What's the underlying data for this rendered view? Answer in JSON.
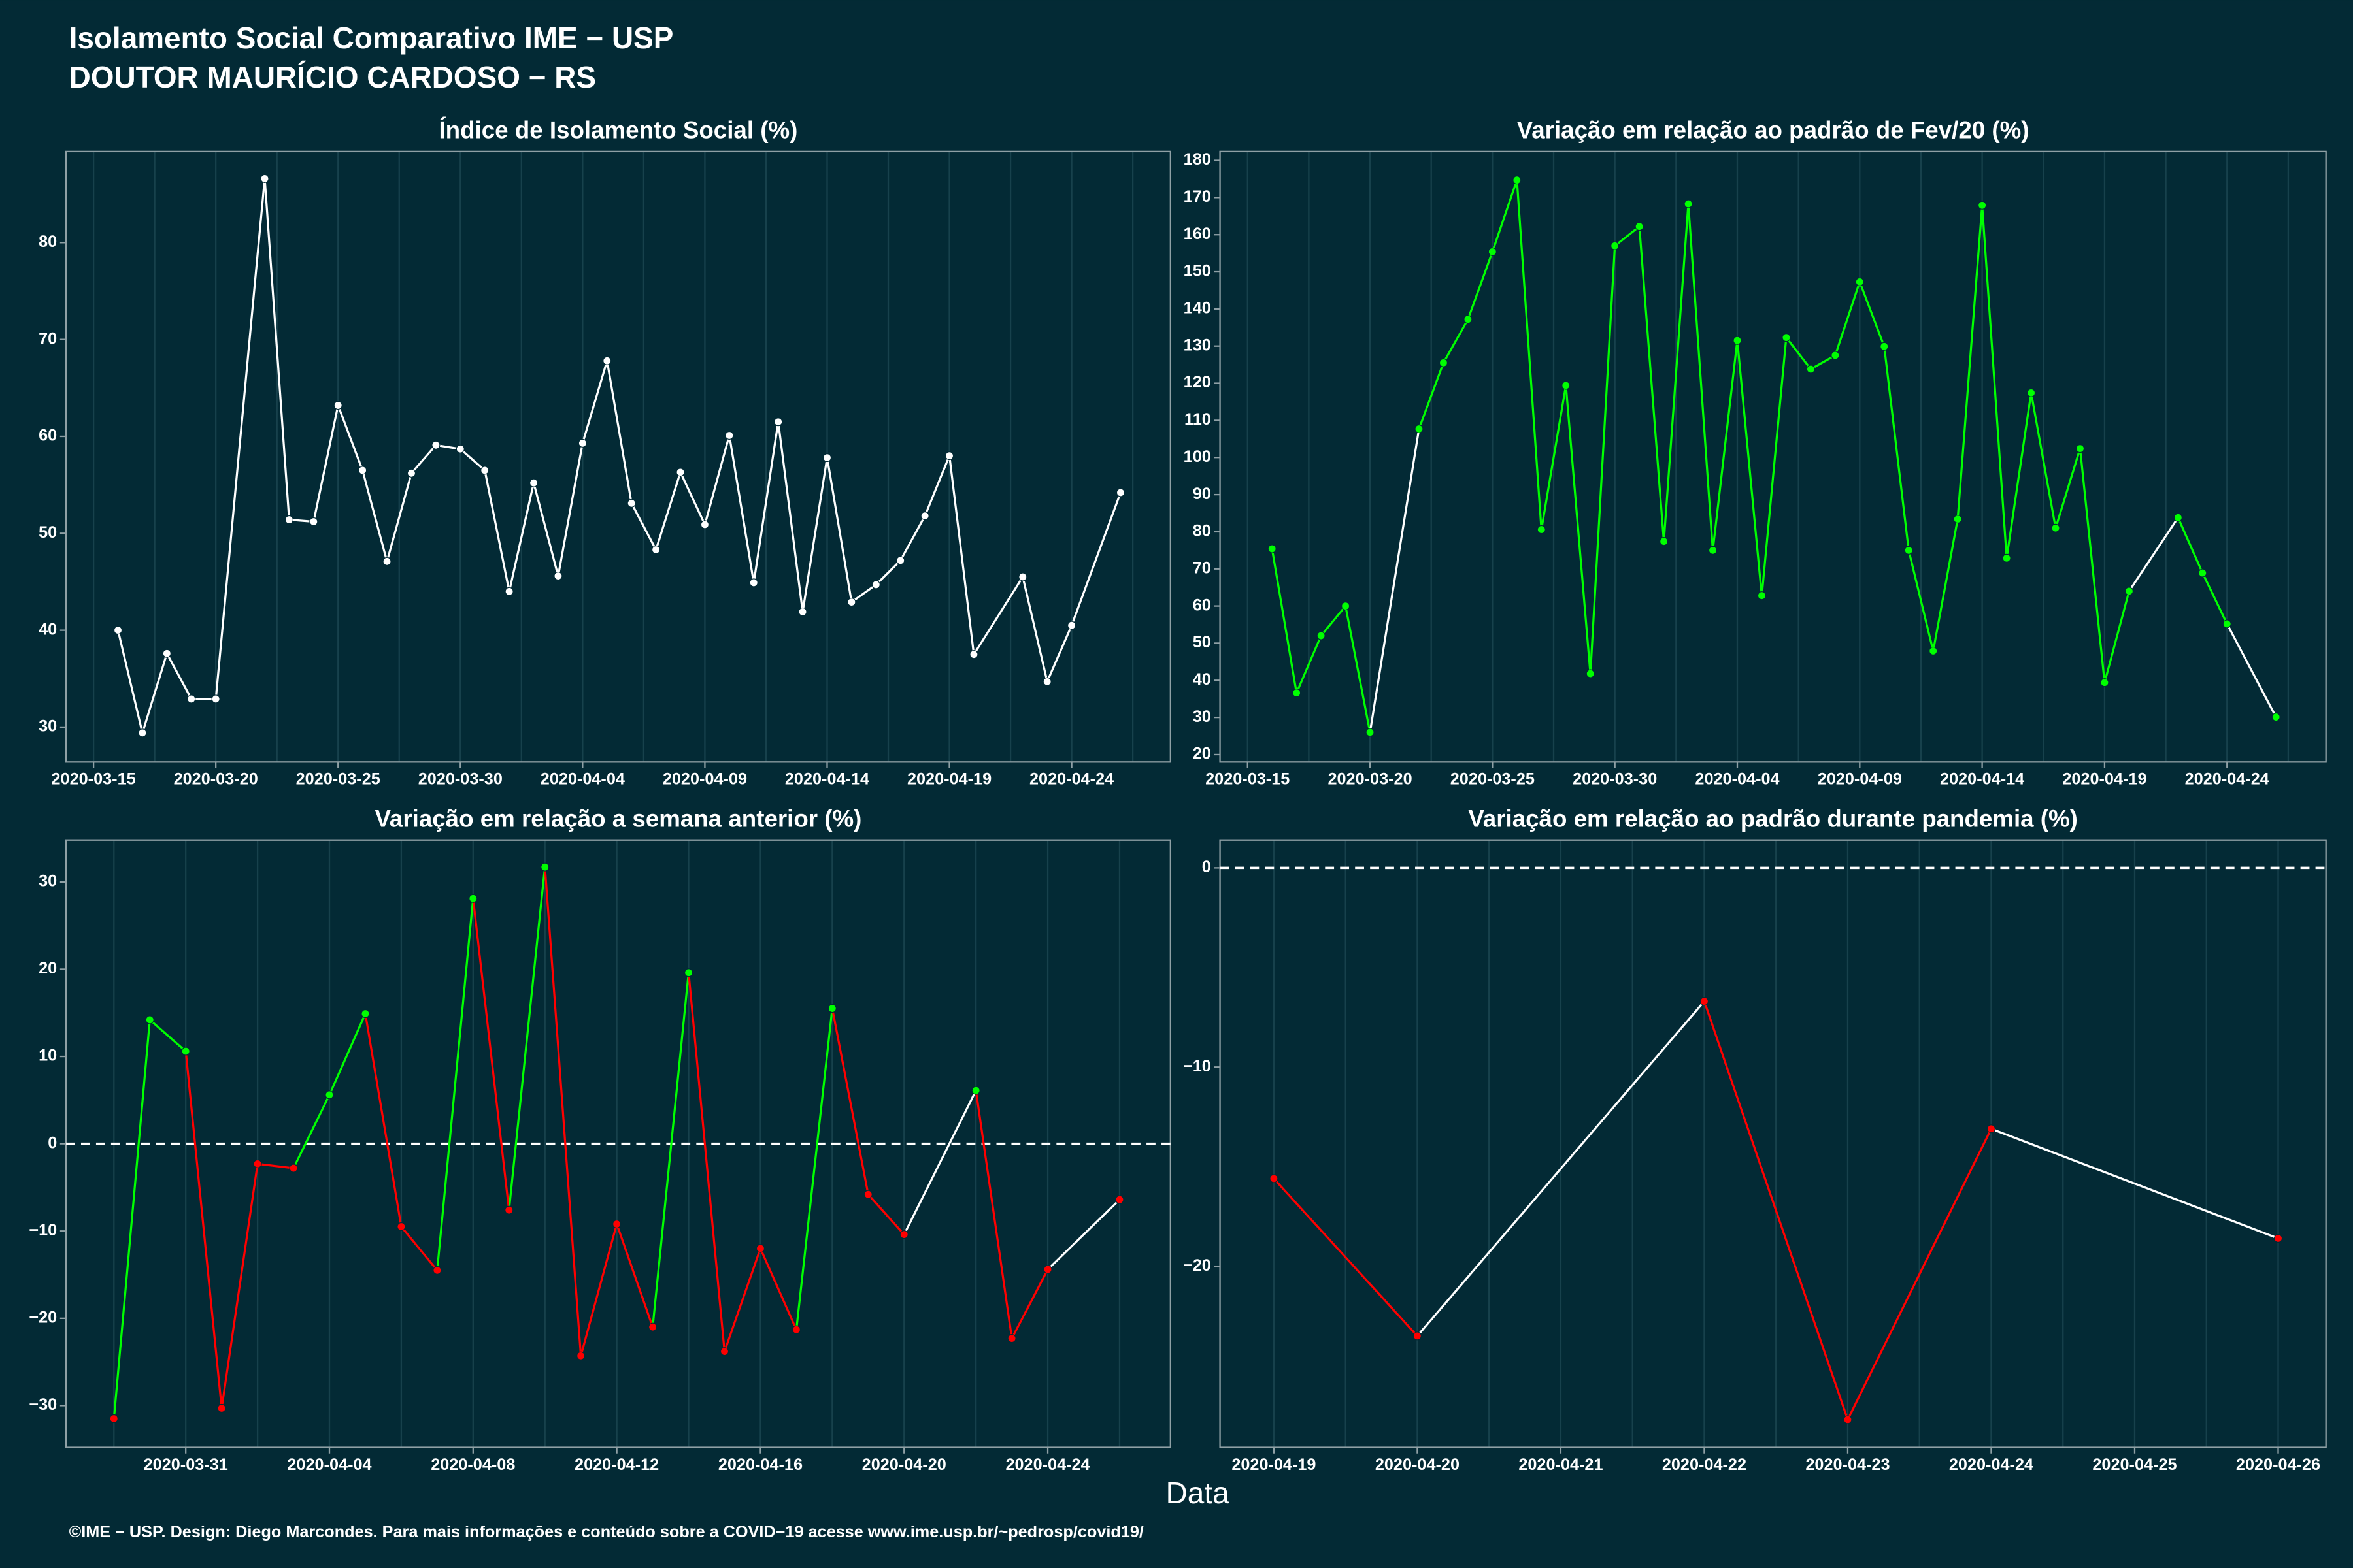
{
  "title": [
    "Isolamento Social Comparativo IME − USP",
    "DOUTOR MAURÍCIO CARDOSO − RS"
  ],
  "xlabel": "Data",
  "caption": "©IME − USP. Design: Diego Marcondes. Para mais informações e conteúdo sobre a COVID−19 acesse www.ime.usp.br/~pedrosp/covid19/",
  "chart_data": [
    {
      "type": "line",
      "title": "Índice de Isolamento Social (%)",
      "color": "#ffffff",
      "grid": true,
      "x": [
        "2020-03-16",
        "2020-03-17",
        "2020-03-18",
        "2020-03-19",
        "2020-03-20",
        "2020-03-22",
        "2020-03-23",
        "2020-03-24",
        "2020-03-25",
        "2020-03-26",
        "2020-03-27",
        "2020-03-28",
        "2020-03-29",
        "2020-03-30",
        "2020-03-31",
        "2020-04-01",
        "2020-04-02",
        "2020-04-03",
        "2020-04-04",
        "2020-04-05",
        "2020-04-06",
        "2020-04-07",
        "2020-04-08",
        "2020-04-09",
        "2020-04-10",
        "2020-04-11",
        "2020-04-12",
        "2020-04-13",
        "2020-04-14",
        "2020-04-15",
        "2020-04-16",
        "2020-04-17",
        "2020-04-18",
        "2020-04-19",
        "2020-04-20",
        "2020-04-22",
        "2020-04-23",
        "2020-04-24",
        "2020-04-26"
      ],
      "values": [
        40,
        29.4,
        37.6,
        32.9,
        32.9,
        86.6,
        51.4,
        51.2,
        63.2,
        56.5,
        47.1,
        56.2,
        59.1,
        58.7,
        56.5,
        44,
        55.2,
        45.6,
        59.3,
        67.8,
        53.1,
        48.3,
        56.3,
        50.9,
        60.1,
        44.9,
        61.5,
        41.9,
        57.8,
        42.9,
        44.7,
        47.2,
        51.8,
        58,
        37.5,
        45.5,
        34.7,
        40.5,
        54.2
      ],
      "xlim": [
        "2020-03-13T21:00",
        "2020-04-28T01:00"
      ],
      "ylim": [
        26.4,
        89.4
      ],
      "xticks": [
        "2020-03-15",
        "2020-03-20",
        "2020-03-25",
        "2020-03-30",
        "2020-04-04",
        "2020-04-09",
        "2020-04-14",
        "2020-04-19",
        "2020-04-24"
      ],
      "yticks": [
        30,
        40,
        50,
        60,
        70,
        80
      ]
    },
    {
      "type": "line",
      "title": "Variação em relação ao padrão de Fev/20 (%)",
      "positive_color": "#00ff00",
      "negative_color": "#ff0000",
      "gap_color": "#ffffff",
      "grid": true,
      "x": [
        "2020-03-16",
        "2020-03-17",
        "2020-03-18",
        "2020-03-19",
        "2020-03-20",
        "2020-03-22",
        "2020-03-23",
        "2020-03-24",
        "2020-03-25",
        "2020-03-26",
        "2020-03-27",
        "2020-03-28",
        "2020-03-29",
        "2020-03-30",
        "2020-03-31",
        "2020-04-01",
        "2020-04-02",
        "2020-04-03",
        "2020-04-04",
        "2020-04-05",
        "2020-04-06",
        "2020-04-07",
        "2020-04-08",
        "2020-04-09",
        "2020-04-10",
        "2020-04-11",
        "2020-04-12",
        "2020-04-13",
        "2020-04-14",
        "2020-04-15",
        "2020-04-16",
        "2020-04-17",
        "2020-04-18",
        "2020-04-19",
        "2020-04-20",
        "2020-04-22",
        "2020-04-23",
        "2020-04-24",
        "2020-04-26"
      ],
      "values": [
        75.4,
        36.6,
        52,
        60,
        26,
        107.7,
        125.5,
        137.2,
        155.4,
        174.7,
        80.6,
        119.4,
        41.8,
        157,
        162.2,
        77.4,
        168.3,
        75,
        131.5,
        62.8,
        132.3,
        123.8,
        127.5,
        147.3,
        129.9,
        75,
        47.9,
        83.4,
        167.9,
        72.9,
        117.4,
        81,
        102.4,
        39.4,
        64,
        83.8,
        68.9,
        55.2,
        30.1
      ],
      "xlim": [
        "2020-03-13T21:00",
        "2020-04-28T01:00"
      ],
      "ylim": [
        18,
        182.4
      ],
      "xticks": [
        "2020-03-15",
        "2020-03-20",
        "2020-03-25",
        "2020-03-30",
        "2020-04-04",
        "2020-04-09",
        "2020-04-14",
        "2020-04-19",
        "2020-04-24"
      ],
      "yticks": [
        20,
        30,
        40,
        50,
        60,
        70,
        80,
        90,
        100,
        110,
        120,
        130,
        140,
        150,
        160,
        170,
        180
      ]
    },
    {
      "type": "line",
      "title": "Variação em relação a semana anterior (%)",
      "positive_color": "#00ff00",
      "negative_color": "#ff0000",
      "gap_color": "#ffffff",
      "grid": true,
      "reference_line": 0,
      "x": [
        "2020-03-29",
        "2020-03-30",
        "2020-03-31",
        "2020-04-01",
        "2020-04-02",
        "2020-04-03",
        "2020-04-04",
        "2020-04-05",
        "2020-04-06",
        "2020-04-07",
        "2020-04-08",
        "2020-04-09",
        "2020-04-10",
        "2020-04-11",
        "2020-04-12",
        "2020-04-13",
        "2020-04-14",
        "2020-04-15",
        "2020-04-16",
        "2020-04-17",
        "2020-04-18",
        "2020-04-19",
        "2020-04-20",
        "2020-04-22",
        "2020-04-23",
        "2020-04-24",
        "2020-04-26"
      ],
      "values": [
        -31.5,
        14.2,
        10.6,
        -30.3,
        -2.3,
        -2.8,
        5.6,
        14.9,
        -9.5,
        -14.5,
        28.1,
        -7.6,
        31.7,
        -24.3,
        -9.2,
        -21,
        19.6,
        -23.8,
        -12,
        -21.3,
        15.5,
        -5.8,
        -10.4,
        6.1,
        -22.3,
        -14.4,
        -6.4
      ],
      "xlim": [
        "2020-03-27T16:00",
        "2020-04-27T10:00"
      ],
      "ylim": [
        -34.8,
        34.8
      ],
      "xticks": [
        "2020-03-31",
        "2020-04-04",
        "2020-04-08",
        "2020-04-12",
        "2020-04-16",
        "2020-04-20",
        "2020-04-24"
      ],
      "yticks": [
        {
          "value": -30,
          "label": "−30"
        },
        {
          "value": -20,
          "label": "−20"
        },
        {
          "value": -10,
          "label": "−10"
        },
        0,
        10,
        20,
        30
      ]
    },
    {
      "type": "line",
      "title": "Variação em relação ao padrão durante pandemia (%)",
      "positive_color": "#00ff00",
      "negative_color": "#ff0000",
      "gap_color": "#ffffff",
      "grid": true,
      "reference_line": 0,
      "x": [
        "2020-04-19",
        "2020-04-20",
        "2020-04-22",
        "2020-04-23",
        "2020-04-24",
        "2020-04-26"
      ],
      "values": [
        -15.6,
        -23.5,
        -6.7,
        -27.7,
        -13.1,
        -18.6
      ],
      "xlim": [
        "2020-04-18T15:00",
        "2020-04-26T08:00"
      ],
      "ylim": [
        -29.1,
        1.4
      ],
      "xticks": [
        "2020-04-19",
        "2020-04-20",
        "2020-04-21",
        "2020-04-22",
        "2020-04-23",
        "2020-04-24",
        "2020-04-25",
        "2020-04-26"
      ],
      "yticks": [
        {
          "value": -20,
          "label": "−20"
        },
        {
          "value": -10,
          "label": "−10"
        },
        0
      ]
    }
  ]
}
